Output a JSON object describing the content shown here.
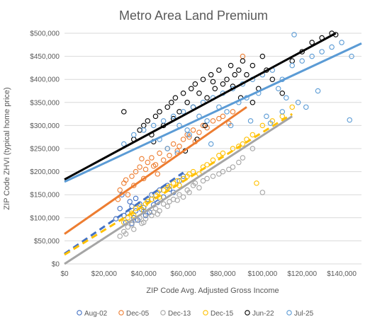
{
  "chart_data": {
    "type": "scatter",
    "title": "Metro Area Land Premium",
    "xlabel": "ZIP Code Avg. Adjusted Gross Income",
    "ylabel": "ZIP Code ZHVI (typical home price)",
    "xlim": [
      0,
      150000
    ],
    "ylim": [
      0,
      500000
    ],
    "x_ticks": [
      "$0",
      "$20,000",
      "$40,000",
      "$60,000",
      "$80,000",
      "$100,000",
      "$120,000",
      "$140,000"
    ],
    "y_ticks": [
      "$0",
      "$50,000",
      "$100,000",
      "$150,000",
      "$200,000",
      "$250,000",
      "$300,000",
      "$350,000",
      "$400,000",
      "$450,000",
      "$500,000"
    ],
    "grid": "horizontal",
    "legend_position": "bottom",
    "series": [
      {
        "name": "Aug-02",
        "color": "#4472C4",
        "trend_style": "dashed",
        "trendline": {
          "x": [
            0,
            60000
          ],
          "y": [
            22000,
            198000
          ]
        },
        "points": [
          [
            28000,
            120000
          ],
          [
            30000,
            105000
          ],
          [
            32000,
            110000
          ],
          [
            34000,
            125000
          ],
          [
            35000,
            100000
          ],
          [
            36000,
            115000
          ],
          [
            38000,
            130000
          ],
          [
            40000,
            122000
          ],
          [
            42000,
            140000
          ],
          [
            33000,
            135000
          ],
          [
            29000,
            150000
          ],
          [
            37000,
            95000
          ],
          [
            41000,
            105000
          ],
          [
            44000,
            150000
          ],
          [
            46000,
            140000
          ],
          [
            48000,
            160000
          ],
          [
            50000,
            145000
          ],
          [
            52000,
            170000
          ],
          [
            55000,
            155000
          ],
          [
            58000,
            180000
          ],
          [
            31000,
            90000
          ],
          [
            39000,
            118000
          ],
          [
            45000,
            128000
          ],
          [
            36000,
            142000
          ],
          [
            26000,
            98000
          ],
          [
            43000,
            112000
          ],
          [
            47000,
            133000
          ],
          [
            34000,
            88000
          ],
          [
            53000,
            162000
          ],
          [
            60000,
            190000
          ]
        ]
      },
      {
        "name": "Dec-05",
        "color": "#ED7D31",
        "trend_style": "solid",
        "trendline": {
          "x": [
            0,
            92000
          ],
          "y": [
            65000,
            340000
          ]
        },
        "points": [
          [
            28000,
            160000
          ],
          [
            30000,
            175000
          ],
          [
            32000,
            150000
          ],
          [
            34000,
            190000
          ],
          [
            36000,
            200000
          ],
          [
            38000,
            210000
          ],
          [
            40000,
            185000
          ],
          [
            42000,
            220000
          ],
          [
            44000,
            230000
          ],
          [
            46000,
            215000
          ],
          [
            48000,
            240000
          ],
          [
            50000,
            225000
          ],
          [
            52000,
            250000
          ],
          [
            55000,
            260000
          ],
          [
            58000,
            255000
          ],
          [
            60000,
            270000
          ],
          [
            62000,
            280000
          ],
          [
            65000,
            290000
          ],
          [
            68000,
            285000
          ],
          [
            70000,
            300000
          ],
          [
            75000,
            310000
          ],
          [
            80000,
            320000
          ],
          [
            85000,
            330000
          ],
          [
            90000,
            450000
          ],
          [
            35000,
            170000
          ],
          [
            41000,
            205000
          ],
          [
            47000,
            195000
          ],
          [
            53000,
            235000
          ],
          [
            57000,
            245000
          ],
          [
            63000,
            275000
          ],
          [
            72000,
            295000
          ],
          [
            78000,
            315000
          ],
          [
            31000,
            182000
          ],
          [
            39000,
            228000
          ],
          [
            45000,
            212000
          ],
          [
            27000,
            140000
          ],
          [
            66000,
            265000
          ],
          [
            83000,
            305000
          ]
        ]
      },
      {
        "name": "Dec-13",
        "color": "#A5A5A5",
        "trend_style": "solid",
        "trendline": {
          "x": [
            0,
            115000
          ],
          "y": [
            0,
            320000
          ]
        },
        "points": [
          [
            28000,
            60000
          ],
          [
            30000,
            70000
          ],
          [
            32000,
            80000
          ],
          [
            34000,
            85000
          ],
          [
            36000,
            95000
          ],
          [
            38000,
            100000
          ],
          [
            40000,
            90000
          ],
          [
            42000,
            110000
          ],
          [
            44000,
            105000
          ],
          [
            46000,
            120000
          ],
          [
            48000,
            115000
          ],
          [
            50000,
            130000
          ],
          [
            52000,
            125000
          ],
          [
            55000,
            140000
          ],
          [
            58000,
            150000
          ],
          [
            60000,
            145000
          ],
          [
            62000,
            160000
          ],
          [
            65000,
            170000
          ],
          [
            68000,
            165000
          ],
          [
            70000,
            180000
          ],
          [
            75000,
            190000
          ],
          [
            80000,
            200000
          ],
          [
            85000,
            210000
          ],
          [
            90000,
            230000
          ],
          [
            95000,
            250000
          ],
          [
            100000,
            155000
          ],
          [
            35000,
            75000
          ],
          [
            41000,
            98000
          ],
          [
            47000,
            108000
          ],
          [
            53000,
            135000
          ],
          [
            57000,
            138000
          ],
          [
            63000,
            155000
          ],
          [
            72000,
            185000
          ],
          [
            78000,
            195000
          ],
          [
            31000,
            65000
          ],
          [
            39000,
            88000
          ],
          [
            45000,
            112000
          ],
          [
            66000,
            175000
          ],
          [
            83000,
            205000
          ],
          [
            88000,
            220000
          ]
        ]
      },
      {
        "name": "Dec-15",
        "color": "#FFC000",
        "trend_style": "dashed",
        "trendline": {
          "x": [
            0,
            115000
          ],
          "y": [
            20000,
            325000
          ]
        },
        "points": [
          [
            30000,
            90000
          ],
          [
            32000,
            100000
          ],
          [
            34000,
            110000
          ],
          [
            36000,
            120000
          ],
          [
            38000,
            125000
          ],
          [
            40000,
            115000
          ],
          [
            42000,
            135000
          ],
          [
            44000,
            140000
          ],
          [
            46000,
            150000
          ],
          [
            48000,
            145000
          ],
          [
            50000,
            160000
          ],
          [
            52000,
            165000
          ],
          [
            55000,
            175000
          ],
          [
            58000,
            170000
          ],
          [
            60000,
            185000
          ],
          [
            62000,
            190000
          ],
          [
            65000,
            200000
          ],
          [
            68000,
            195000
          ],
          [
            70000,
            210000
          ],
          [
            75000,
            225000
          ],
          [
            80000,
            240000
          ],
          [
            85000,
            250000
          ],
          [
            90000,
            260000
          ],
          [
            95000,
            280000
          ],
          [
            100000,
            300000
          ],
          [
            105000,
            310000
          ],
          [
            110000,
            320000
          ],
          [
            115000,
            340000
          ],
          [
            97000,
            175000
          ],
          [
            35000,
            105000
          ],
          [
            41000,
            130000
          ],
          [
            47000,
            155000
          ],
          [
            53000,
            168000
          ],
          [
            57000,
            180000
          ],
          [
            63000,
            195000
          ],
          [
            72000,
            215000
          ],
          [
            78000,
            235000
          ],
          [
            88000,
            255000
          ],
          [
            92000,
            270000
          ]
        ]
      },
      {
        "name": "Jun-22",
        "color": "#000000",
        "trend_style": "solid",
        "trendline": {
          "x": [
            0,
            137000
          ],
          "y": [
            183000,
            500000
          ]
        },
        "points": [
          [
            40000,
            300000
          ],
          [
            42000,
            310000
          ],
          [
            44000,
            280000
          ],
          [
            46000,
            320000
          ],
          [
            48000,
            330000
          ],
          [
            50000,
            300000
          ],
          [
            52000,
            340000
          ],
          [
            54000,
            350000
          ],
          [
            56000,
            360000
          ],
          [
            58000,
            330000
          ],
          [
            60000,
            370000
          ],
          [
            62000,
            350000
          ],
          [
            64000,
            380000
          ],
          [
            66000,
            390000
          ],
          [
            68000,
            370000
          ],
          [
            70000,
            400000
          ],
          [
            72000,
            360000
          ],
          [
            74000,
            410000
          ],
          [
            76000,
            380000
          ],
          [
            78000,
            420000
          ],
          [
            80000,
            390000
          ],
          [
            82000,
            400000
          ],
          [
            84000,
            430000
          ],
          [
            86000,
            410000
          ],
          [
            88000,
            420000
          ],
          [
            90000,
            440000
          ],
          [
            92000,
            410000
          ],
          [
            95000,
            430000
          ],
          [
            98000,
            380000
          ],
          [
            100000,
            450000
          ],
          [
            102000,
            420000
          ],
          [
            105000,
            400000
          ],
          [
            110000,
            370000
          ],
          [
            115000,
            440000
          ],
          [
            120000,
            460000
          ],
          [
            125000,
            480000
          ],
          [
            130000,
            490000
          ],
          [
            135000,
            500000
          ],
          [
            137000,
            497000
          ],
          [
            30000,
            330000
          ],
          [
            35000,
            270000
          ],
          [
            38000,
            290000
          ],
          [
            45000,
            265000
          ],
          [
            55000,
            315000
          ],
          [
            65000,
            340000
          ],
          [
            75000,
            395000
          ],
          [
            85000,
            385000
          ],
          [
            95000,
            350000
          ],
          [
            67000,
            270000
          ],
          [
            61000,
            245000
          ],
          [
            71000,
            300000
          ],
          [
            89000,
            360000
          ]
        ]
      },
      {
        "name": "Jul-25",
        "color": "#5B9BD5",
        "trend_style": "solid",
        "trendline": {
          "x": [
            0,
            150000
          ],
          "y": [
            178000,
            478000
          ]
        },
        "points": [
          [
            30000,
            260000
          ],
          [
            35000,
            280000
          ],
          [
            40000,
            290000
          ],
          [
            45000,
            300000
          ],
          [
            50000,
            310000
          ],
          [
            52000,
            250000
          ],
          [
            55000,
            320000
          ],
          [
            58000,
            300000
          ],
          [
            60000,
            330000
          ],
          [
            62000,
            290000
          ],
          [
            65000,
            340000
          ],
          [
            68000,
            320000
          ],
          [
            70000,
            350000
          ],
          [
            72000,
            310000
          ],
          [
            75000,
            360000
          ],
          [
            78000,
            340000
          ],
          [
            80000,
            370000
          ],
          [
            82000,
            330000
          ],
          [
            85000,
            380000
          ],
          [
            88000,
            350000
          ],
          [
            90000,
            390000
          ],
          [
            92000,
            360000
          ],
          [
            95000,
            400000
          ],
          [
            98000,
            370000
          ],
          [
            100000,
            410000
          ],
          [
            102000,
            320000
          ],
          [
            105000,
            420000
          ],
          [
            108000,
            380000
          ],
          [
            110000,
            400000
          ],
          [
            112000,
            360000
          ],
          [
            115000,
            430000
          ],
          [
            118000,
            350000
          ],
          [
            120000,
            440000
          ],
          [
            125000,
            450000
          ],
          [
            128000,
            375000
          ],
          [
            130000,
            460000
          ],
          [
            135000,
            470000
          ],
          [
            140000,
            480000
          ],
          [
            144000,
            312000
          ],
          [
            145000,
            450000
          ],
          [
            116000,
            497000
          ],
          [
            48000,
            270000
          ],
          [
            57000,
            240000
          ],
          [
            63000,
            280000
          ],
          [
            74000,
            260000
          ],
          [
            84000,
            300000
          ],
          [
            94000,
            310000
          ],
          [
            104000,
            305000
          ],
          [
            110000,
            330000
          ],
          [
            122000,
            340000
          ]
        ]
      }
    ]
  }
}
